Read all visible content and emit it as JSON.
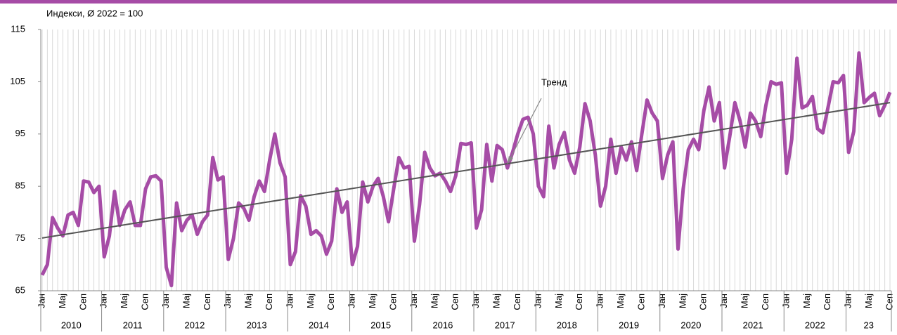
{
  "chart_data": {
    "type": "line",
    "title": "Индекси, Ø 2022 = 100",
    "annotation": "Тренд",
    "categories": [
      "Јан",
      null,
      null,
      null,
      "Мај",
      null,
      null,
      null,
      "Сеп",
      null,
      null,
      null,
      "Јан",
      null,
      null,
      null,
      "Мај",
      null,
      null,
      null,
      "Сеп",
      null,
      null,
      null,
      "Јан",
      null,
      null,
      null,
      "Мај",
      null,
      null,
      null,
      "Сеп",
      null,
      null,
      null,
      "Јан",
      null,
      null,
      null,
      "Мај",
      null,
      null,
      null,
      "Сеп",
      null,
      null,
      null,
      "Јан",
      null,
      null,
      null,
      "Мај",
      null,
      null,
      null,
      "Сеп",
      null,
      null,
      null,
      "Јан",
      null,
      null,
      null,
      "Мај",
      null,
      null,
      null,
      "Сеп",
      null,
      null,
      null,
      "Јан",
      null,
      null,
      null,
      "Мај",
      null,
      null,
      null,
      "Сеп",
      null,
      null,
      null,
      "Јан",
      null,
      null,
      null,
      "Мај",
      null,
      null,
      null,
      "Сеп",
      null,
      null,
      null,
      "Јан",
      null,
      null,
      null,
      "Мај",
      null,
      null,
      null,
      "Сеп",
      null,
      null,
      null,
      "Јан",
      null,
      null,
      null,
      "Мај",
      null,
      null,
      null,
      "Сеп",
      null,
      null,
      null,
      "Јан",
      null,
      null,
      null,
      "Мај",
      null,
      null,
      null,
      "Сеп",
      null,
      null,
      null,
      "Јан",
      null,
      null,
      null,
      "Мај",
      null,
      null,
      null,
      "Сеп",
      null,
      null,
      null,
      "Јан",
      null,
      null,
      null,
      "Мај",
      null,
      null,
      null,
      "Сеп",
      null,
      null,
      null,
      "Јан",
      null,
      null,
      null,
      "Мај",
      null,
      null,
      null,
      "Сеп"
    ],
    "years": [
      "2010",
      "2011",
      "2012",
      "2013",
      "2014",
      "2015",
      "2016",
      "2017",
      "2018",
      "2019",
      "2020",
      "2021",
      "2022",
      "23"
    ],
    "series": [
      {
        "color": "#a64ca6",
        "values": [
          68,
          70,
          79,
          77,
          75.5,
          79.5,
          80,
          77.5,
          86,
          85.8,
          83.8,
          85,
          71.5,
          75.5,
          84,
          77.5,
          80.5,
          82,
          77.5,
          77.5,
          84.5,
          86.8,
          87,
          86,
          69.5,
          66,
          81.8,
          76.5,
          78.5,
          79.5,
          75.8,
          78.2,
          79.5,
          90.5,
          86.2,
          86.8,
          71,
          75,
          81.8,
          80.8,
          78.5,
          83,
          86,
          84,
          90,
          95,
          89.5,
          86.8,
          70,
          72.5,
          83.2,
          81.2,
          75.8,
          76.5,
          75.5,
          72,
          74.5,
          84.5,
          80,
          82,
          70,
          73.5,
          85.8,
          82,
          85,
          86.5,
          83,
          78.2,
          84.5,
          90.5,
          88.5,
          88.8,
          74.5,
          81.5,
          91.5,
          88.5,
          87,
          87.5,
          86,
          84,
          87,
          93.2,
          93,
          93.3,
          77,
          80.5,
          93,
          86,
          92.8,
          92,
          88.5,
          91.5,
          95,
          97.8,
          98.2,
          95,
          85,
          83,
          96.5,
          88.5,
          93,
          95.3,
          90,
          87.5,
          92.5,
          100.8,
          97.5,
          91,
          81.2,
          85,
          94,
          87.5,
          92.5,
          90,
          93.5,
          88,
          95,
          101.5,
          99,
          97.5,
          86.5,
          91,
          93.5,
          73,
          84.5,
          92,
          94,
          92,
          99.5,
          104,
          97.5,
          101,
          88.5,
          94.5,
          101,
          97.5,
          92.5,
          99,
          97.5,
          94.5,
          100.5,
          105,
          104.5,
          104.8,
          87.5,
          94,
          109.5,
          100,
          100.5,
          102.2,
          96,
          95.2,
          100,
          105,
          104.8,
          106.2,
          91.5,
          95.5,
          110.5,
          101,
          102,
          102.8,
          98.5,
          100.5,
          103
        ]
      }
    ],
    "trend": {
      "color": "#555555",
      "values": [
        75.1,
        101
      ]
    },
    "ylim": [
      65,
      115
    ],
    "yticks": [
      65,
      75,
      85,
      95,
      105,
      115
    ]
  }
}
